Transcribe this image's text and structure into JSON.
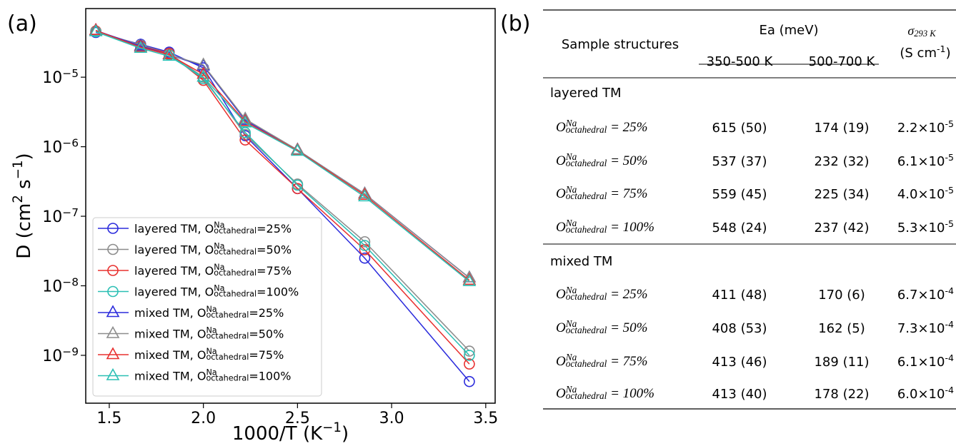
{
  "panel_labels": [
    "(a)",
    "(b)"
  ],
  "chart_data": {
    "type": "line",
    "log_y": true,
    "x_label": "1000/T (K^{−1})",
    "y_label": "D (cm^{2} s^{−1})",
    "x": [
      1.4286,
      1.6667,
      1.8182,
      2.0,
      2.2222,
      2.5,
      2.8571,
      3.413
    ],
    "xlim": [
      1.375,
      3.55
    ],
    "ylim": [
      2.05e-10,
      9.7e-05
    ],
    "xticks": [
      1.5,
      {
        "value": 2.0,
        "label": "2.0"
      },
      2.5,
      {
        "value": 3.0,
        "label": "3.0"
      },
      3.5
    ],
    "yticks": [
      {
        "value": 1e-09,
        "label": "10^{−9}"
      },
      {
        "value": 1e-08,
        "label": "10^{−8}"
      },
      {
        "value": 1e-07,
        "label": "10^{−7}"
      },
      {
        "value": 1e-06,
        "label": "10^{−6}"
      },
      {
        "value": 1e-05,
        "label": "10^{−5}"
      }
    ],
    "legend": "lower left",
    "series": [
      {
        "name": "layered TM, O^{Na}_{octahedral}=25%",
        "color": "#2b2bdc",
        "marker": "circle",
        "values": [
          4.4e-05,
          2.97e-05,
          2.29e-05,
          1.36e-05,
          1.44e-06,
          2.5e-07,
          2.5e-08,
          4.2e-10
        ]
      },
      {
        "name": "layered TM, O^{Na}_{octahedral}=50%",
        "color": "#8c8c8c",
        "marker": "circle",
        "values": [
          4.6e-05,
          2.9e-05,
          2.2e-05,
          1e-05,
          1.5e-06,
          2.9e-07,
          4.3e-08,
          1.15e-09
        ]
      },
      {
        "name": "layered TM, O^{Na}_{octahedral}=75%",
        "color": "#e8302f",
        "marker": "circle",
        "values": [
          4.6e-05,
          2.8e-05,
          2.2e-05,
          9e-06,
          1.25e-06,
          2.5e-07,
          3.3e-08,
          7.5e-10
        ]
      },
      {
        "name": "layered TM, O^{Na}_{octahedral}=100%",
        "color": "#2bbfb4",
        "marker": "circle",
        "values": [
          4.5e-05,
          2.7e-05,
          2.1e-05,
          9.5e-06,
          1.6e-06,
          2.8e-07,
          3.8e-08,
          1e-09
        ]
      },
      {
        "name": "mixed TM, O^{Na}_{octahedral}=25%",
        "color": "#2b2bdc",
        "marker": "triangle",
        "values": [
          4.7e-05,
          2.8e-05,
          2.1e-05,
          1.45e-05,
          2.4e-06,
          9e-07,
          2.1e-07,
          1.3e-08
        ]
      },
      {
        "name": "mixed TM, O^{Na}_{octahedral}=50%",
        "color": "#8c8c8c",
        "marker": "triangle",
        "values": [
          4.6e-05,
          2.7e-05,
          2.1e-05,
          1.5e-05,
          2.5e-06,
          9e-07,
          2.1e-07,
          1.3e-08
        ]
      },
      {
        "name": "mixed TM, O^{Na}_{octahedral}=75%",
        "color": "#e8302f",
        "marker": "triangle",
        "values": [
          4.7e-05,
          2.7e-05,
          2.1e-05,
          1.1e-05,
          2.3e-06,
          8.8e-07,
          2e-07,
          1.2e-08
        ]
      },
      {
        "name": "mixed TM, O^{Na}_{octahedral}=100%",
        "color": "#2bbfb4",
        "marker": "triangle",
        "values": [
          4.5e-05,
          2.6e-05,
          2e-05,
          1e-05,
          2.2e-06,
          8.6e-07,
          1.9e-07,
          1.15e-08
        ]
      }
    ]
  },
  "table": {
    "header": {
      "structures": "Sample structures",
      "ea": "Ea (meV)",
      "range1": "350-500 K",
      "range2": "500-700 K",
      "sigma": "σ_{293 K}",
      "sigma_unit": "(S cm^{-1})"
    },
    "groups": [
      {
        "title": "layered TM",
        "rows": [
          [
            "O^{Na}_{octahedral} = 25%",
            "615 (50)",
            "174 (19)",
            "2.2×10^{-5}"
          ],
          [
            "O^{Na}_{octahedral} = 50%",
            "537 (37)",
            "232 (32)",
            "6.1×10^{-5}"
          ],
          [
            "O^{Na}_{octahedral} = 75%",
            "559 (45)",
            "225 (34)",
            "4.0×10^{-5}"
          ],
          [
            "O^{Na}_{octahedral} = 100%",
            "548 (24)",
            "237 (42)",
            "5.3×10^{-5}"
          ]
        ]
      },
      {
        "title": "mixed TM",
        "rows": [
          [
            "O^{Na}_{octahedral} = 25%",
            "411 (48)",
            "170 (6)",
            "6.7×10^{-4}"
          ],
          [
            "O^{Na}_{octahedral} = 50%",
            "408 (53)",
            "162 (5)",
            "7.3×10^{-4}"
          ],
          [
            "O^{Na}_{octahedral} = 75%",
            "413 (46)",
            "189 (11)",
            "6.1×10^{-4}"
          ],
          [
            "O^{Na}_{octahedral} = 100%",
            "413 (40)",
            "178 (22)",
            "6.0×10^{-4}"
          ]
        ]
      }
    ]
  }
}
